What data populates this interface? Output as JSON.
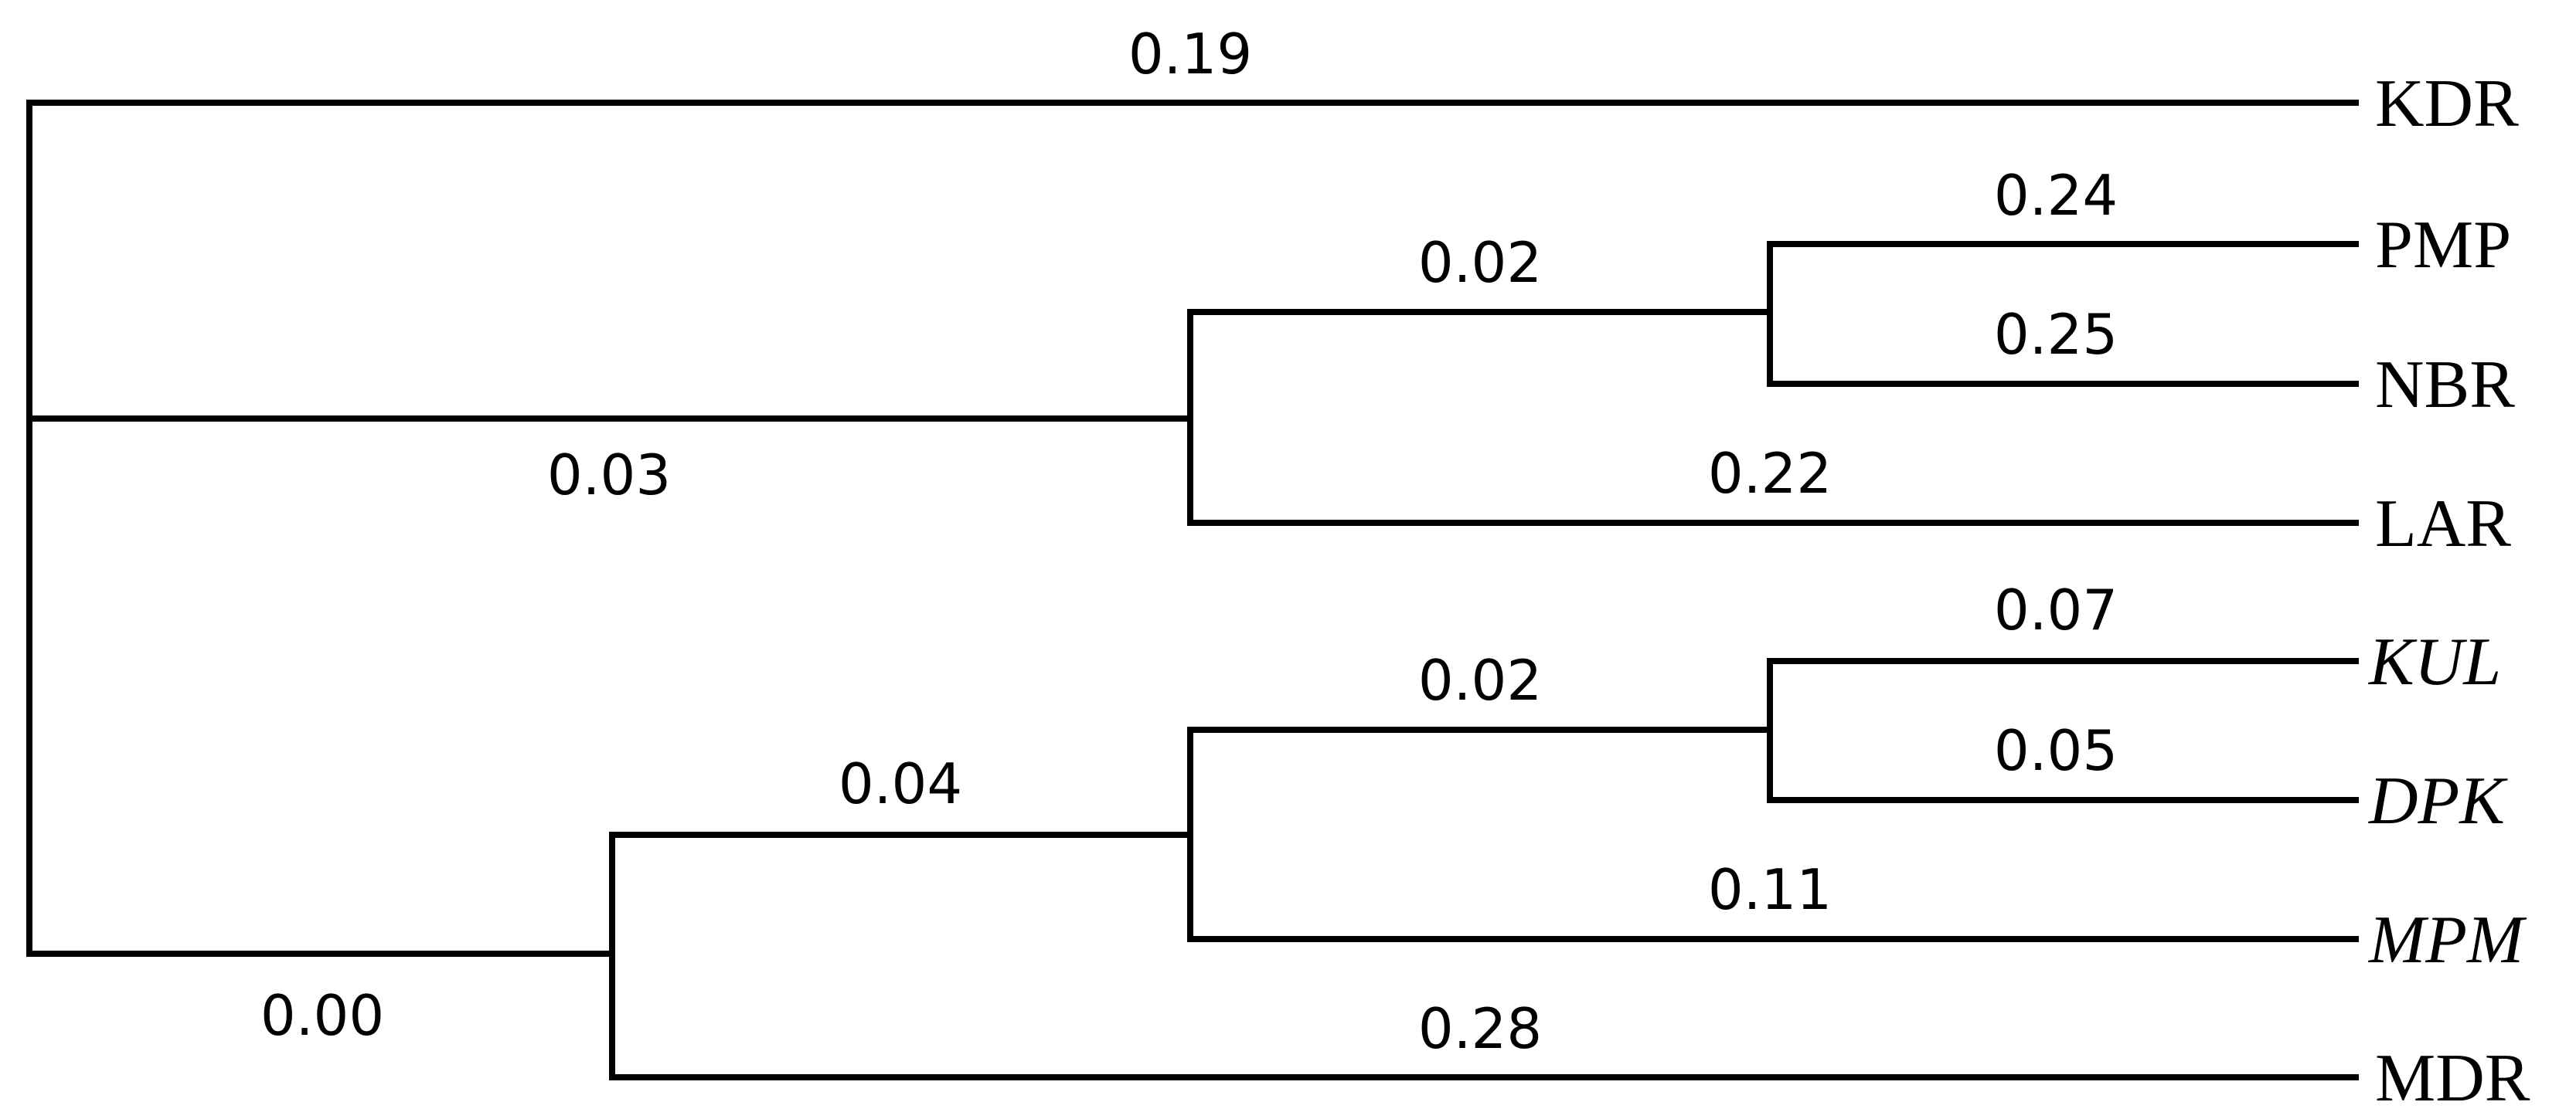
{
  "tree": {
    "taxa": [
      {
        "name": "KDR",
        "italic": false
      },
      {
        "name": "PMP",
        "italic": false
      },
      {
        "name": "NBR",
        "italic": false
      },
      {
        "name": "LAR",
        "italic": false
      },
      {
        "name": "KUL",
        "italic": true
      },
      {
        "name": "DPK",
        "italic": true
      },
      {
        "name": "MPM",
        "italic": true
      },
      {
        "name": "MDR",
        "italic": false
      }
    ],
    "branch_lengths": {
      "KDR": "0.19",
      "PMP": "0.24",
      "NBR": "0.25",
      "LAR": "0.22",
      "KUL": "0.07",
      "DPK": "0.05",
      "MPM": "0.11",
      "MDR": "0.28",
      "PMP_NBR": "0.02",
      "PMP_NBR_LAR": "0.03",
      "KUL_DPK": "0.02",
      "KUL_DPK_MPM": "0.04",
      "KUL_DPK_MPM_MDR": "0.00"
    }
  }
}
